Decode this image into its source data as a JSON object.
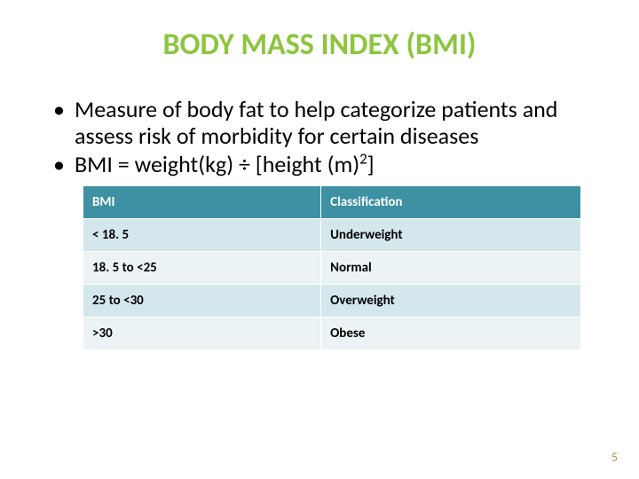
{
  "title": {
    "text": "BODY MASS INDEX (BMI)",
    "color": "#8cc63f"
  },
  "bullets": [
    "Measure of body fat to help categorize patients and assess risk of morbidity for certain diseases",
    "BMI = weight(kg) ÷ [height (m)²]"
  ],
  "table": {
    "header_bg": "#3d91a3",
    "row_odd_bg": "#d4e7ec",
    "row_even_bg": "#ebf3f5",
    "columns": [
      "BMI",
      "Classification"
    ],
    "rows": [
      [
        "< 18. 5",
        "Underweight"
      ],
      [
        "18. 5 to <25",
        "Normal"
      ],
      [
        "25 to <30",
        "Overweight"
      ],
      [
        ">30",
        "Obese"
      ]
    ]
  },
  "page_number": {
    "text": "5",
    "color": "#c09050"
  }
}
